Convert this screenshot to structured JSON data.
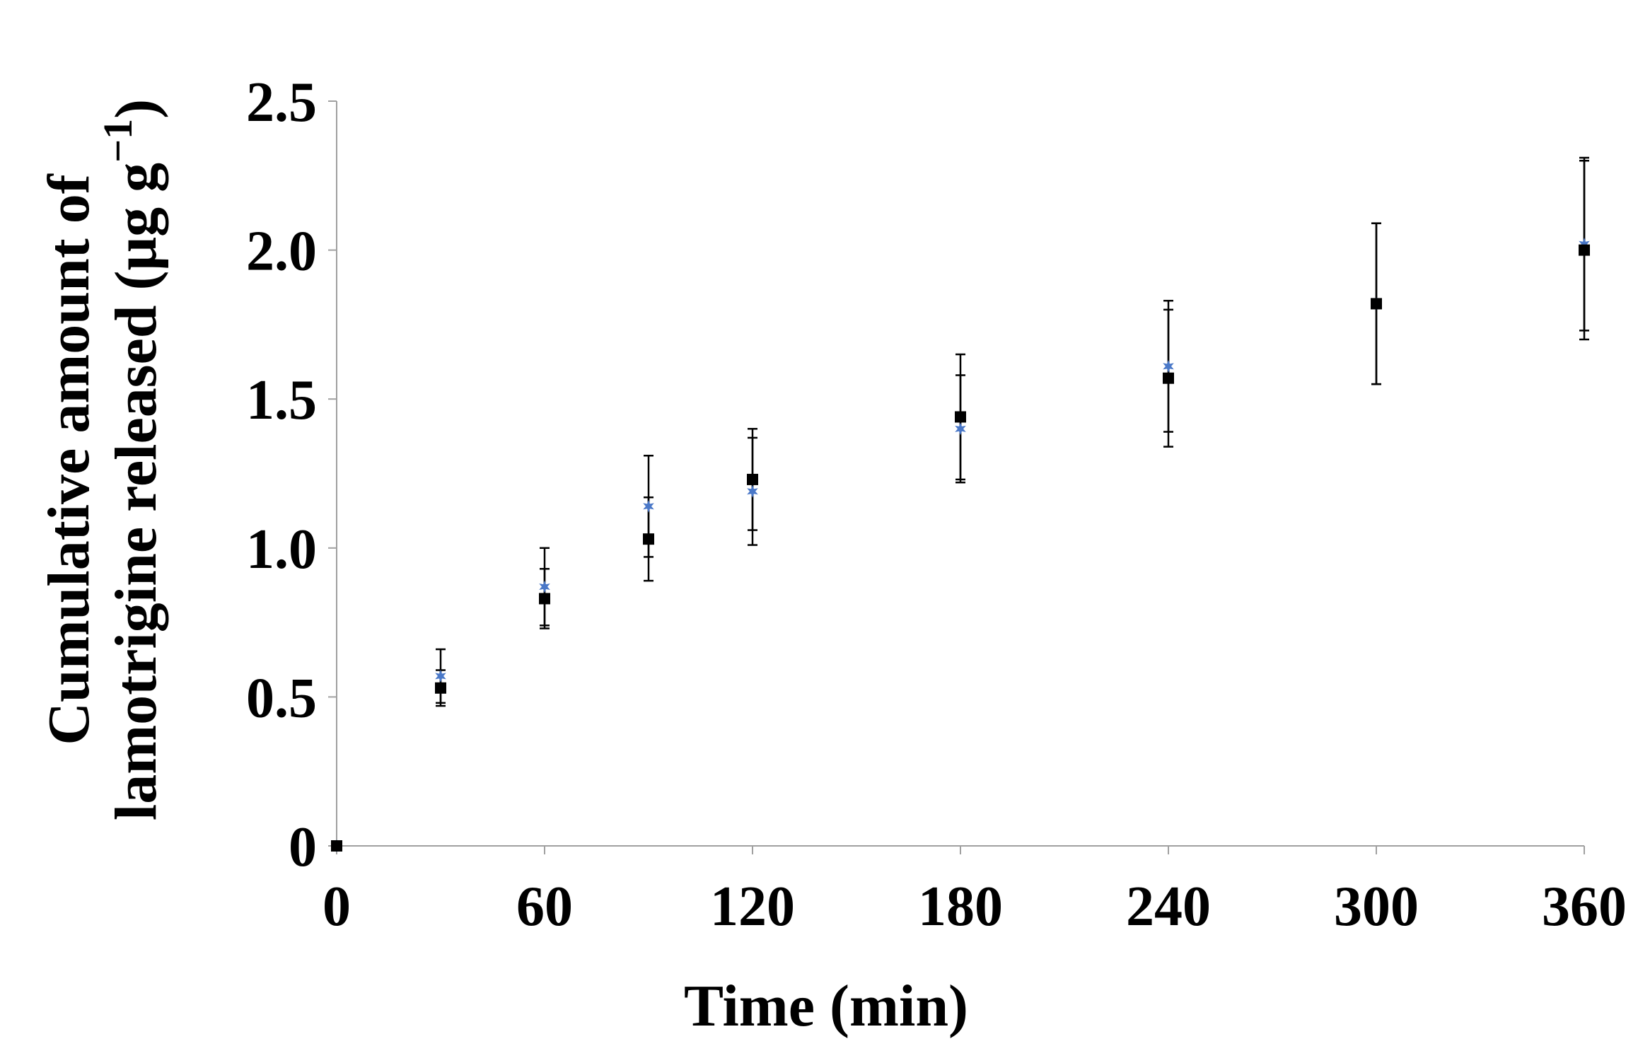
{
  "chart_data": {
    "type": "scatter",
    "title": "",
    "xlabel": "Time (min)",
    "ylabel_line1": "Cumulative amount of",
    "ylabel_line2": "lamotrigine released (μg g",
    "ylabel_sup": "−1",
    "ylabel_close": ")",
    "xlim": [
      0,
      360
    ],
    "ylim": [
      0,
      2.5
    ],
    "xticks": [
      "0",
      "60",
      "120",
      "180",
      "240",
      "300",
      "360"
    ],
    "yticks": [
      "0",
      "0.5",
      "1.0",
      "1.5",
      "2.0",
      "2.5"
    ],
    "grid": false,
    "legend": "none",
    "series": [
      {
        "marker": "square",
        "color": "#000000",
        "points": [
          {
            "x": 0,
            "y": 0,
            "err": 0
          },
          {
            "x": 30,
            "y": 0.53,
            "err": 0.06
          },
          {
            "x": 60,
            "y": 0.83,
            "err": 0.1
          },
          {
            "x": 90,
            "y": 1.03,
            "err": 0.14
          },
          {
            "x": 120,
            "y": 1.23,
            "err": 0.17
          },
          {
            "x": 180,
            "y": 1.44,
            "err": 0.21
          },
          {
            "x": 240,
            "y": 1.57,
            "err": 0.23
          },
          {
            "x": 300,
            "y": 1.82,
            "err": 0.27
          },
          {
            "x": 360,
            "y": 2.0,
            "err": 0.3
          }
        ]
      },
      {
        "marker": "star",
        "color": "#4a78c8",
        "points": [
          {
            "x": 0,
            "y": 0,
            "err": 0
          },
          {
            "x": 30,
            "y": 0.57,
            "err": 0.09
          },
          {
            "x": 60,
            "y": 0.87,
            "err": 0.13
          },
          {
            "x": 90,
            "y": 1.14,
            "err": 0.17
          },
          {
            "x": 120,
            "y": 1.19,
            "err": 0.18
          },
          {
            "x": 180,
            "y": 1.4,
            "err": 0.18
          },
          {
            "x": 240,
            "y": 1.61,
            "err": 0.22
          },
          {
            "x": 300,
            "y": 1.82,
            "err": 0.27
          },
          {
            "x": 360,
            "y": 2.02,
            "err": 0.29
          }
        ]
      }
    ]
  }
}
